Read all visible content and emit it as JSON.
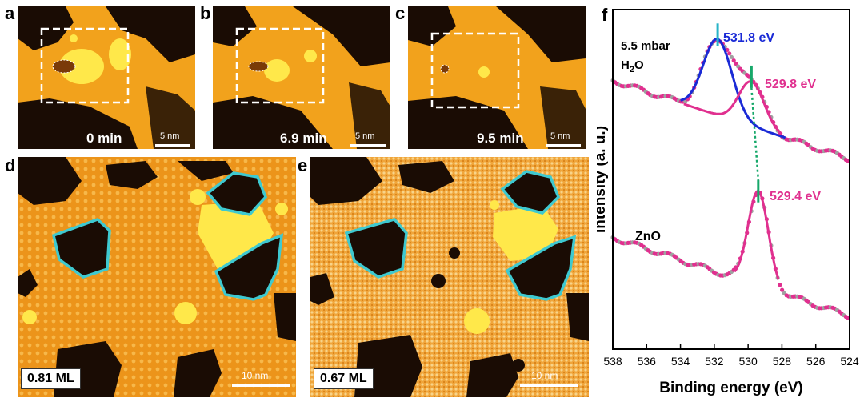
{
  "panels": {
    "a": {
      "label": "a",
      "time": "0 min",
      "scale": "5 nm"
    },
    "b": {
      "label": "b",
      "time": "6.9 min",
      "scale": "5 nm"
    },
    "c": {
      "label": "c",
      "time": "9.5 min",
      "scale": "5 nm"
    },
    "d": {
      "label": "d",
      "coverage": "0.81 ML",
      "scale": "10 nm"
    },
    "e": {
      "label": "e",
      "coverage": "0.67 ML",
      "scale": "10 nm"
    },
    "f": {
      "label": "f"
    }
  },
  "colors": {
    "stm_bg": "#f2a21c",
    "stm_dark": "#1a0c04",
    "stm_bright": "#ffe84a",
    "outline": "#3ec9d0",
    "blue_fit": "#1a2ad6",
    "pink_fit": "#e0308f",
    "data_gray": "#a0a0a0",
    "cyan_marker": "#28b4c8",
    "green_marker": "#17a86a"
  },
  "chart_data": {
    "type": "line",
    "xlabel": "Binding energy (eV)",
    "ylabel": "Intensity (a. u.)",
    "xlim": [
      538,
      524
    ],
    "x_ticks": [
      "538",
      "536",
      "534",
      "532",
      "530",
      "528",
      "526",
      "524"
    ],
    "annotations": {
      "condition_line1": "5.5 mbar",
      "condition_line2": "H",
      "condition_sub": "2",
      "condition_line2b": "O",
      "peak1": "531.8 eV",
      "peak2": "529.8 eV",
      "peak3": "529.4 eV",
      "lower_label": "ZnO"
    },
    "series": [
      {
        "curve": "upper",
        "peaks": [
          531.8,
          529.8
        ]
      },
      {
        "curve": "lower",
        "peaks": [
          529.4
        ]
      }
    ]
  }
}
